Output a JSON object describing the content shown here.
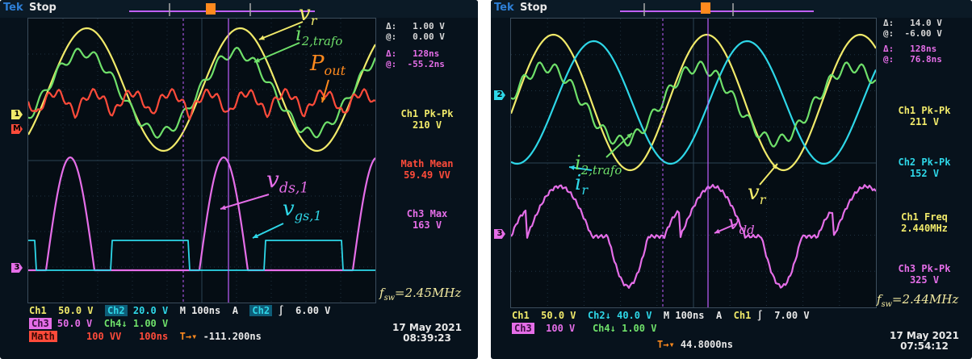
{
  "left": {
    "brand": "Tek",
    "state": "Stop",
    "delta1": {
      "d": "Δ:",
      "d_val": "1.00 V",
      "at": "@:",
      "at_val": "0.00 V"
    },
    "delta2": {
      "d": "Δ:",
      "d_val": "128ns",
      "at": "@:",
      "at_val": "-55.2ns"
    },
    "measurements": [
      {
        "label": "Ch1 Pk-Pk",
        "value": "210 V",
        "color": "#f1ea6a"
      },
      {
        "label": "Math Mean",
        "value": "59.49 VV",
        "color": "#ff4b3a"
      },
      {
        "label": "Ch3 Max",
        "value": "163 V",
        "color": "#e56ee8"
      }
    ],
    "bottom": {
      "ch1": "Ch1",
      "ch1_val": "50.0 V",
      "ch2": "Ch2",
      "ch2_val": "20.0 V",
      "timebase": "M 100ns",
      "trig_a": "A",
      "trig_ch": "Ch2",
      "trig_slope": "∫",
      "trig_val": "6.00 V",
      "ch3": "Ch3",
      "ch3_val": "50.0 V",
      "ch4": "Ch4↓",
      "ch4_val": "1.00 V",
      "math": "Math",
      "math_val": "100 VV",
      "math_time": "100ns",
      "pos": "-111.200ns"
    },
    "date": "17 May 2021",
    "time": "08:39:23",
    "fsw_prefix": "f",
    "fsw_sub": "sw",
    "fsw_value": "=2.45MHz",
    "labels": {
      "vr": "v",
      "vr_sub": "r",
      "i2": "i",
      "i2_sub": "2,trafo",
      "pout": "P",
      "pout_sub": "out",
      "vds": "v",
      "vds_sub": "ds,1",
      "vgs": "v",
      "vgs_sub": "gs,1"
    }
  },
  "right": {
    "brand": "Tek",
    "state": "Stop",
    "delta1": {
      "d": "Δ:",
      "d_val": "14.0 V",
      "at": "@:",
      "at_val": "-6.00 V"
    },
    "delta2": {
      "d": "Δ:",
      "d_val": "128ns",
      "at": "@:",
      "at_val": "76.8ns"
    },
    "measurements": [
      {
        "label": "Ch1 Pk-Pk",
        "value": "211 V",
        "color": "#f1ea6a"
      },
      {
        "label": "Ch2 Pk-Pk",
        "value": "152 V",
        "color": "#2ed7e8"
      },
      {
        "label": "Ch1 Freq",
        "value": "2.440MHz",
        "color": "#f1ea6a"
      },
      {
        "label": "Ch3 Pk-Pk",
        "value": "325 V",
        "color": "#e56ee8"
      }
    ],
    "bottom": {
      "ch1": "Ch1",
      "ch1_val": "50.0 V",
      "ch2": "Ch2↓",
      "ch2_val": "40.0 V",
      "timebase": "M 100ns",
      "trig_a": "A",
      "trig_ch": "Ch1",
      "trig_slope": "∫",
      "trig_val": "7.00 V",
      "ch3": "Ch3",
      "ch3_val": "100 V",
      "ch4": "Ch4↓",
      "ch4_val": "1.00 V",
      "pos": "44.8000ns"
    },
    "date": "17 May 2021",
    "time": "07:54:12",
    "fsw_prefix": "f",
    "fsw_sub": "sw",
    "fsw_value": "=2.44MHz",
    "labels": {
      "i2": "i",
      "i2_sub": "2,trafo",
      "ir": "i",
      "ir_sub": "r",
      "vr": "v",
      "vr_sub": "r",
      "vdd": "v",
      "vdd_sub": "dd"
    }
  },
  "colors": {
    "ch1": "#f1ea6a",
    "ch2": "#2ed7e8",
    "ch3": "#e56ee8",
    "ch4": "#6fe06a",
    "math": "#ff4b3a",
    "cursor": "#c060ff"
  }
}
